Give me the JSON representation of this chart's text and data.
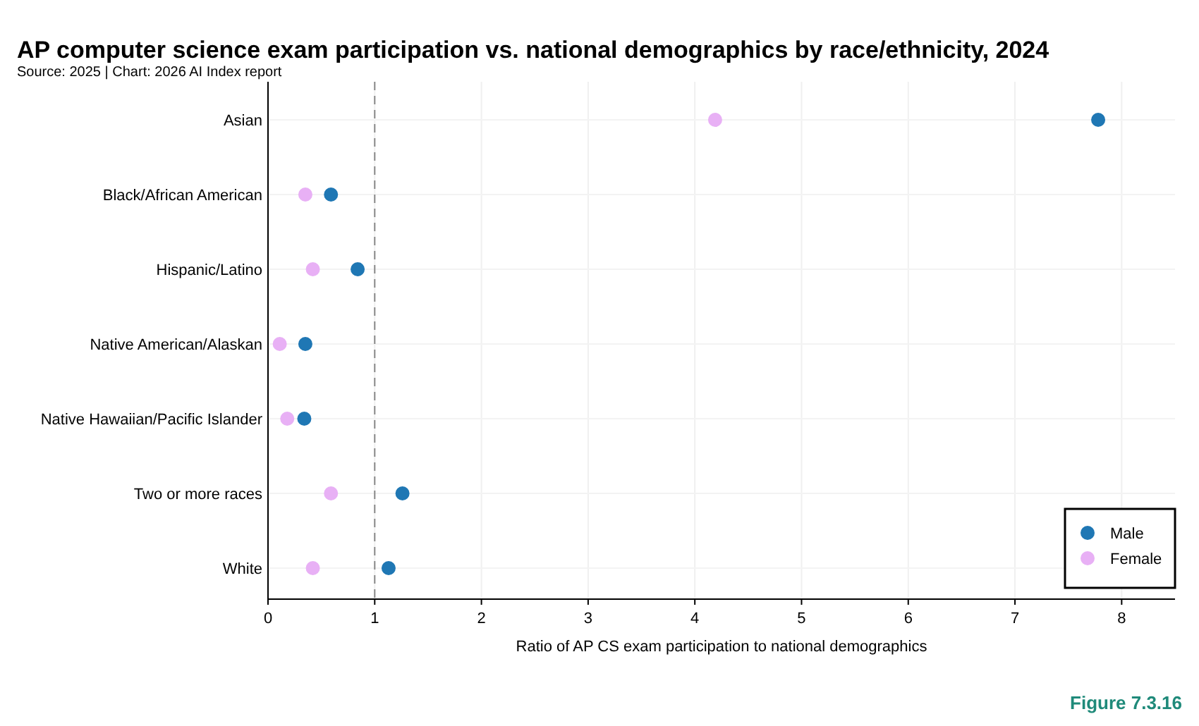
{
  "chart_data": {
    "type": "scatter",
    "orientation": "horizontal",
    "title": "AP computer science exam participation vs. national demographics by race/ethnicity, 2024",
    "subtitle": "Source: 2025 | Chart: 2026 AI Index report",
    "xlabel": "Ratio of AP CS exam participation to national demographics",
    "categories": [
      "Asian",
      "Black/African American",
      "Hispanic/Latino",
      "Native American/Alaskan",
      "Native Hawaiian/Pacific Islander",
      "Two or more races",
      "White"
    ],
    "series": [
      {
        "name": "Male",
        "color": "#1f77b4",
        "values": [
          7.78,
          0.59,
          0.84,
          0.35,
          0.34,
          1.26,
          1.13
        ]
      },
      {
        "name": "Female",
        "color": "#e8b0f5",
        "values": [
          4.19,
          0.35,
          0.42,
          0.11,
          0.18,
          0.59,
          0.42
        ]
      }
    ],
    "xlim": [
      0,
      8.5
    ],
    "xticks": [
      0,
      1,
      2,
      3,
      4,
      5,
      6,
      7,
      8
    ],
    "ref_lines": [
      {
        "axis": "x",
        "value": 1,
        "line_style": "dashed",
        "color": "#888888"
      }
    ],
    "annotations": [
      "Figure 7.3.16"
    ],
    "grid": true,
    "legend": "bottom right",
    "marker": "circle"
  }
}
